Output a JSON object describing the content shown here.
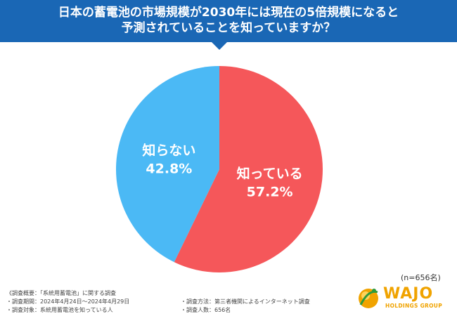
{
  "header": {
    "title_line1": "日本の蓄電池の市場規模が2030年には現在の5倍規模になると",
    "title_line2": "予測されていることを知っていますか？"
  },
  "chart_data": {
    "type": "pie",
    "categories": [
      "知っている",
      "知らない"
    ],
    "values": [
      57.2,
      42.8
    ],
    "value_labels": [
      "57.2%",
      "42.8%"
    ],
    "colors": [
      "#f5575a",
      "#4bb9f5"
    ],
    "start_angle_deg": 0,
    "direction": "clockwise",
    "legend": "none"
  },
  "sample_size": "(n=656名)",
  "footnotes": {
    "outline": "《調査概要：「系統用蓄電池」に関する調査",
    "period": "・調査期間：2024年4月24日～2024年4月29日",
    "target": "・調査対象：系統用蓄電池を知っている人",
    "method": "・調査方法：第三者機関によるインターネット調査",
    "count": "・調査人数：656名"
  },
  "logo": {
    "word": "WAJO",
    "sub": "HOLDINGS GROUP",
    "color": "#f0a300"
  }
}
